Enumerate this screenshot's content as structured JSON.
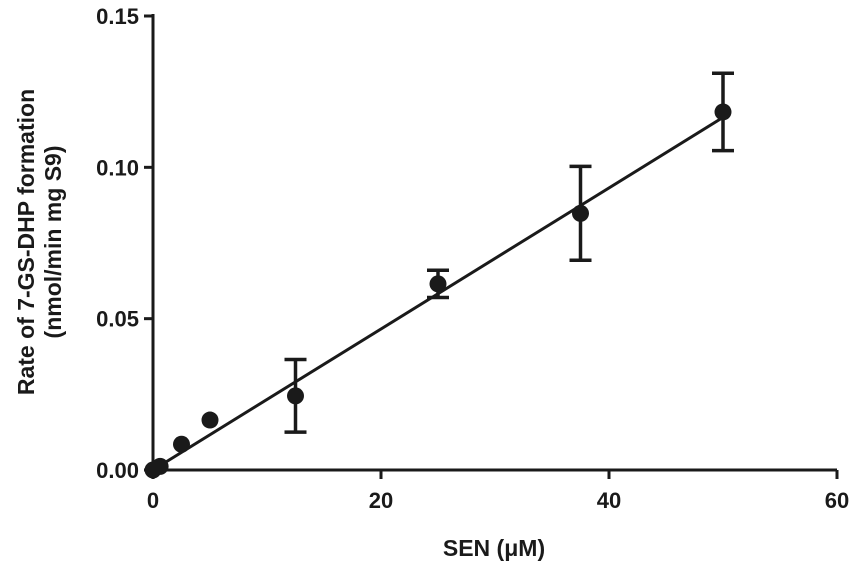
{
  "chart_data": {
    "type": "scatter",
    "title": "",
    "xlabel": "SEN (μM)",
    "ylabel_line1": "Rate of 7-GS-DHP formation",
    "ylabel_line2": "(nmol/min mg S9)",
    "xlim": [
      0,
      60
    ],
    "ylim": [
      0,
      0.15
    ],
    "x_ticks": [
      0,
      20,
      40,
      60
    ],
    "x_tick_labels": [
      "0",
      "20",
      "40",
      "60"
    ],
    "y_ticks": [
      0,
      0.05,
      0.1,
      0.15
    ],
    "y_tick_labels": [
      "0.00",
      "0.05",
      "0.10",
      "0.15"
    ],
    "grid": false,
    "legend": "none",
    "color": "#1a1a1a",
    "points": [
      {
        "x": 0,
        "y": 0.0,
        "err": 0
      },
      {
        "x": 0.625,
        "y": 0.0012,
        "err": 0
      },
      {
        "x": 2.5,
        "y": 0.0085,
        "err": 0
      },
      {
        "x": 5,
        "y": 0.0165,
        "err": 0
      },
      {
        "x": 12.5,
        "y": 0.0245,
        "err": 0.012
      },
      {
        "x": 25,
        "y": 0.0615,
        "err": 0.0045
      },
      {
        "x": 37.5,
        "y": 0.0848,
        "err": 0.0155
      },
      {
        "x": 50,
        "y": 0.1183,
        "err": 0.0128
      }
    ],
    "fit_line": {
      "x": [
        0,
        50
      ],
      "y": [
        0.0,
        0.1165
      ]
    }
  }
}
